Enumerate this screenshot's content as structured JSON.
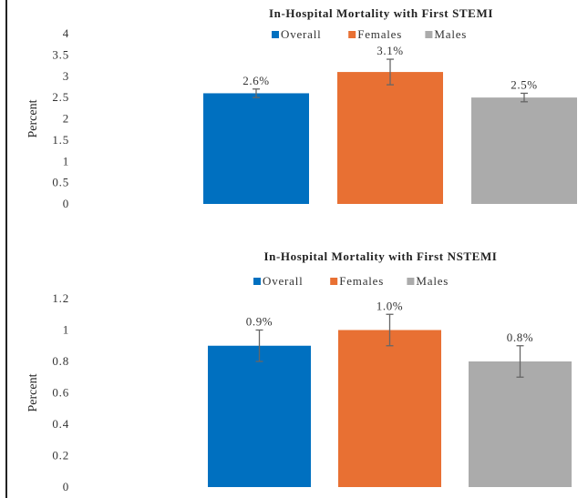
{
  "chart_data": [
    {
      "type": "bar",
      "title": "In-Hospital Mortality with First STEMI",
      "xlabel": "",
      "ylabel": "Percent",
      "ylim": [
        0,
        4
      ],
      "yticks": [
        0,
        0.5,
        1,
        1.5,
        2,
        2.5,
        3,
        3.5,
        4
      ],
      "ytick_labels": [
        "0",
        "0.5",
        "1",
        "1.5",
        "2",
        "2.5",
        "3",
        "3.5",
        "4"
      ],
      "grid": false,
      "legend_position": "top-center",
      "categories": [
        "Overall",
        "Females",
        "Males"
      ],
      "series": [
        {
          "name": "Overall",
          "color": "#0070c0",
          "value": 2.6,
          "label": "2.6%",
          "error_low": 2.5,
          "error_high": 2.7
        },
        {
          "name": "Females",
          "color": "#e87033",
          "value": 3.1,
          "label": "3.1%",
          "error_low": 2.8,
          "error_high": 3.4
        },
        {
          "name": "Males",
          "color": "#ababab",
          "value": 2.5,
          "label": "2.5%",
          "error_low": 2.4,
          "error_high": 2.6
        }
      ]
    },
    {
      "type": "bar",
      "title": "In-Hospital Mortality with First NSTEMI",
      "xlabel": "",
      "ylabel": "Percent",
      "ylim": [
        0,
        1.2
      ],
      "yticks": [
        0,
        0.2,
        0.4,
        0.6,
        0.8,
        1,
        1.2
      ],
      "ytick_labels": [
        "0",
        "0.2",
        "0.4",
        "0.6",
        "0.8",
        "1",
        "1.2"
      ],
      "grid": false,
      "legend_position": "top-center",
      "categories": [
        "Overall",
        "Females",
        "Males"
      ],
      "series": [
        {
          "name": "Overall",
          "color": "#0070c0",
          "value": 0.9,
          "label": "0.9%",
          "error_low": 0.8,
          "error_high": 1.0
        },
        {
          "name": "Females",
          "color": "#e87033",
          "value": 1.0,
          "label": "1.0%",
          "error_low": 0.9,
          "error_high": 1.1
        },
        {
          "name": "Males",
          "color": "#ababab",
          "value": 0.8,
          "label": "0.8%",
          "error_low": 0.7,
          "error_high": 0.9
        }
      ]
    }
  ],
  "error_bar_color": "#666666"
}
